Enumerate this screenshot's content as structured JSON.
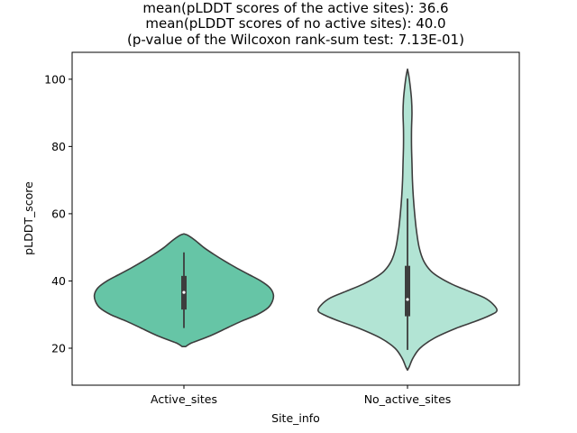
{
  "chart_data": {
    "type": "violin",
    "title": [
      "mean(pLDDT scores of the active sites): 36.6",
      "mean(pLDDT scores of no active sites): 40.0",
      "(p-value of the Wilcoxon rank-sum test: 7.13E-01)"
    ],
    "xlabel": "Site_info",
    "ylabel": "pLDDT_score",
    "ylim": [
      9,
      108
    ],
    "yticks": [
      20,
      40,
      60,
      80,
      100
    ],
    "categories": [
      "Active_sites",
      "No_active_sites"
    ],
    "grid": false,
    "legend": "none",
    "violins": [
      {
        "category": "Active_sites",
        "color": "#66c5a6",
        "box": {
          "q1": 31.5,
          "median": 36.6,
          "q3": 41.5,
          "whisker_low": 26.0,
          "whisker_high": 48.5
        },
        "density": [
          [
            20.5,
            0.02
          ],
          [
            21.5,
            0.08
          ],
          [
            22.5,
            0.18
          ],
          [
            24,
            0.32
          ],
          [
            26,
            0.48
          ],
          [
            28,
            0.64
          ],
          [
            30,
            0.82
          ],
          [
            32,
            0.94
          ],
          [
            34,
            0.99
          ],
          [
            36,
            1.0
          ],
          [
            38,
            0.96
          ],
          [
            40,
            0.86
          ],
          [
            42,
            0.72
          ],
          [
            44,
            0.58
          ],
          [
            46,
            0.45
          ],
          [
            48,
            0.33
          ],
          [
            50,
            0.22
          ],
          [
            52,
            0.13
          ],
          [
            53.5,
            0.05
          ],
          [
            54,
            0.0
          ]
        ]
      },
      {
        "category": "No_active_sites",
        "color": "#b2e4d4",
        "box": {
          "q1": 29.5,
          "median": 34.5,
          "q3": 44.5,
          "whisker_low": 19.5,
          "whisker_high": 64.5
        },
        "density": [
          [
            13.5,
            0.0
          ],
          [
            14.5,
            0.02
          ],
          [
            17,
            0.06
          ],
          [
            20,
            0.14
          ],
          [
            23,
            0.3
          ],
          [
            26,
            0.55
          ],
          [
            28,
            0.76
          ],
          [
            30,
            0.94
          ],
          [
            31.2,
            1.0
          ],
          [
            33,
            0.96
          ],
          [
            35,
            0.86
          ],
          [
            37,
            0.68
          ],
          [
            39,
            0.5
          ],
          [
            41,
            0.36
          ],
          [
            43,
            0.26
          ],
          [
            46,
            0.18
          ],
          [
            50,
            0.13
          ],
          [
            55,
            0.1
          ],
          [
            60,
            0.08
          ],
          [
            65,
            0.065
          ],
          [
            70,
            0.055
          ],
          [
            75,
            0.05
          ],
          [
            80,
            0.045
          ],
          [
            85,
            0.045
          ],
          [
            90,
            0.05
          ],
          [
            94,
            0.045
          ],
          [
            98,
            0.03
          ],
          [
            101,
            0.015
          ],
          [
            103,
            0.0
          ]
        ]
      }
    ]
  }
}
